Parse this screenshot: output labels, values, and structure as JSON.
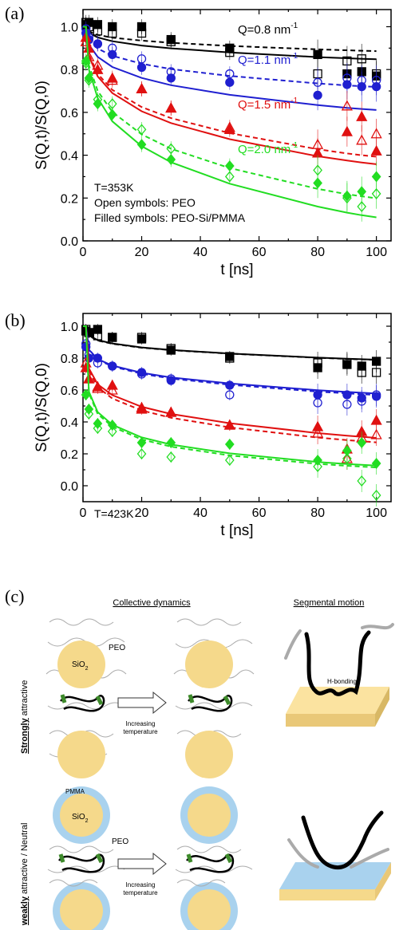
{
  "chart_data": [
    {
      "type": "scatter",
      "panel_label": "(a)",
      "xlabel": "t [ns]",
      "ylabel": "S(Q,t)/S(Q,0)",
      "xlim": [
        0,
        105
      ],
      "ylim": [
        0.0,
        1.08
      ],
      "xticks": [
        0,
        10,
        20,
        30,
        40,
        50,
        60,
        70,
        80,
        90,
        100
      ],
      "xtick_labels": [
        "0",
        "20",
        "40",
        "60",
        "80",
        "100"
      ],
      "ytick_labels": [
        "0.0",
        "0.2",
        "0.4",
        "0.6",
        "0.8",
        "1.0"
      ],
      "yticks": [
        0.0,
        0.1,
        0.2,
        0.3,
        0.4,
        0.5,
        0.6,
        0.7,
        0.8,
        0.9,
        1.0
      ],
      "notes": [
        "T=353K",
        "Open symbols: PEO",
        "Filled symbols: PEO-Si/PMMA"
      ],
      "series": [
        {
          "q_label": "Q=0.8 nm",
          "color": "#000000",
          "marker": "square",
          "x": [
            1,
            2,
            5,
            10,
            20,
            30,
            50,
            80,
            90,
            95,
            100
          ],
          "open": [
            1.02,
            1.0,
            0.98,
            0.97,
            0.97,
            0.93,
            0.88,
            0.78,
            0.84,
            0.85,
            0.78
          ],
          "filled": [
            1.01,
            1.02,
            1.01,
            1.0,
            1.0,
            0.94,
            0.9,
            0.87,
            0.78,
            0.79,
            0.77
          ],
          "fit_open": [
            1.0,
            0.978,
            0.962,
            0.949,
            0.935,
            0.925,
            0.91,
            0.894,
            0.89,
            0.888,
            0.886
          ],
          "fit_filled": [
            1.0,
            0.971,
            0.95,
            0.932,
            0.912,
            0.899,
            0.88,
            0.858,
            0.853,
            0.85,
            0.848
          ]
        },
        {
          "q_label": "Q=1.1 nm",
          "color": "#1f1fd0",
          "marker": "circle",
          "x": [
            1,
            2,
            5,
            10,
            20,
            30,
            50,
            80,
            90,
            95,
            100
          ],
          "open": [
            0.99,
            0.95,
            0.92,
            0.9,
            0.85,
            0.79,
            0.78,
            0.74,
            0.76,
            0.75,
            0.75
          ],
          "filled": [
            0.97,
            0.94,
            0.92,
            0.87,
            0.81,
            0.76,
            0.74,
            0.68,
            0.73,
            0.72,
            0.72
          ],
          "fit_open": [
            1.0,
            0.94,
            0.898,
            0.864,
            0.827,
            0.802,
            0.77,
            0.735,
            0.726,
            0.722,
            0.719
          ],
          "fit_filled": [
            1.0,
            0.916,
            0.859,
            0.812,
            0.761,
            0.727,
            0.682,
            0.634,
            0.621,
            0.616,
            0.611
          ]
        },
        {
          "q_label": "Q=1.5 nm",
          "color": "#e01010",
          "marker": "triangle",
          "x": [
            1,
            2,
            5,
            10,
            20,
            30,
            50,
            80,
            90,
            95,
            100
          ],
          "open": [
            0.93,
            0.86,
            0.82,
            0.75,
            0.71,
            0.62,
            0.53,
            0.45,
            0.63,
            0.47,
            0.5
          ],
          "filled": [
            0.95,
            0.9,
            0.8,
            0.76,
            0.71,
            0.62,
            0.52,
            0.41,
            0.51,
            0.58,
            0.42
          ],
          "fit_open": [
            1.0,
            0.87,
            0.78,
            0.705,
            0.625,
            0.573,
            0.503,
            0.428,
            0.408,
            0.4,
            0.393
          ],
          "fit_filled": [
            1.0,
            0.862,
            0.768,
            0.69,
            0.605,
            0.55,
            0.475,
            0.395,
            0.375,
            0.366,
            0.358
          ]
        },
        {
          "q_label": "Q=2.0 nm",
          "color": "#22dd22",
          "marker": "diamond",
          "x": [
            1,
            2,
            5,
            10,
            20,
            30,
            50,
            80,
            90,
            95,
            100
          ],
          "open": [
            0.83,
            0.75,
            0.66,
            0.64,
            0.52,
            0.43,
            0.3,
            0.33,
            0.2,
            0.16,
            0.22
          ],
          "filled": [
            0.84,
            0.76,
            0.64,
            0.59,
            0.45,
            0.38,
            0.35,
            0.27,
            0.21,
            0.23,
            0.3
          ],
          "fit_open": [
            1.0,
            0.82,
            0.7,
            0.602,
            0.497,
            0.43,
            0.34,
            0.243,
            0.218,
            0.208,
            0.199
          ],
          "fit_filled": [
            1.0,
            0.8,
            0.667,
            0.558,
            0.442,
            0.367,
            0.267,
            0.16,
            0.132,
            0.12,
            0.11
          ]
        }
      ]
    },
    {
      "type": "scatter",
      "panel_label": "(b)",
      "xlabel": "t [ns]",
      "ylabel": "S(Q,t)/S(Q,0)",
      "xlim": [
        0,
        105
      ],
      "ylim": [
        -0.1,
        1.08
      ],
      "xticks": [
        0,
        10,
        20,
        30,
        40,
        50,
        60,
        70,
        80,
        90,
        100
      ],
      "xtick_labels": [
        "0",
        "20",
        "40",
        "60",
        "80",
        "100"
      ],
      "ytick_labels": [
        "0.0",
        "0.2",
        "0.4",
        "0.6",
        "0.8",
        "1.0"
      ],
      "yticks": [
        0.0,
        0.1,
        0.2,
        0.3,
        0.4,
        0.5,
        0.6,
        0.7,
        0.8,
        0.9,
        1.0
      ],
      "notes": [
        "T=423K"
      ],
      "series": [
        {
          "color": "#000000",
          "marker": "square",
          "x": [
            1,
            2,
            5,
            10,
            20,
            30,
            50,
            80,
            90,
            95,
            100
          ],
          "open": [
            0.98,
            0.96,
            0.94,
            0.93,
            0.93,
            0.86,
            0.8,
            0.77,
            0.77,
            0.71,
            0.71
          ],
          "filled": [
            0.97,
            0.96,
            0.98,
            0.93,
            0.92,
            0.85,
            0.81,
            0.74,
            0.76,
            0.75,
            0.78
          ],
          "fit_open": [
            1.0,
            0.94,
            0.91,
            0.89,
            0.865,
            0.85,
            0.828,
            0.802,
            0.795,
            0.792,
            0.789
          ],
          "fit_filled": [
            1.0,
            0.942,
            0.913,
            0.892,
            0.867,
            0.851,
            0.829,
            0.803,
            0.796,
            0.793,
            0.79
          ]
        },
        {
          "color": "#1f1fd0",
          "marker": "circle",
          "x": [
            1,
            2,
            5,
            10,
            20,
            30,
            50,
            80,
            90,
            95,
            100
          ],
          "open": [
            0.89,
            0.82,
            0.77,
            0.75,
            0.7,
            0.67,
            0.57,
            0.52,
            0.51,
            0.53,
            0.57
          ],
          "filled": [
            0.87,
            0.8,
            0.8,
            0.75,
            0.71,
            0.66,
            0.63,
            0.57,
            0.57,
            0.55,
            0.56
          ],
          "fit_open": [
            1.0,
            0.85,
            0.79,
            0.748,
            0.702,
            0.672,
            0.633,
            0.59,
            0.579,
            0.574,
            0.569
          ],
          "fit_filled": [
            1.0,
            0.853,
            0.794,
            0.753,
            0.708,
            0.679,
            0.641,
            0.599,
            0.588,
            0.583,
            0.578
          ]
        },
        {
          "color": "#e01010",
          "marker": "triangle",
          "x": [
            1,
            2,
            5,
            10,
            20,
            30,
            50,
            80,
            90,
            95,
            100
          ],
          "open": [
            0.77,
            0.67,
            0.61,
            0.6,
            0.49,
            0.46,
            0.38,
            0.33,
            0.17,
            0.3,
            0.32
          ],
          "filled": [
            0.74,
            0.67,
            0.62,
            0.63,
            0.48,
            0.46,
            0.38,
            0.37,
            0.23,
            0.34,
            0.41
          ],
          "fit_open": [
            1.0,
            0.72,
            0.617,
            0.547,
            0.472,
            0.426,
            0.366,
            0.302,
            0.286,
            0.279,
            0.272
          ],
          "fit_filled": [
            1.0,
            0.736,
            0.636,
            0.568,
            0.495,
            0.45,
            0.392,
            0.33,
            0.314,
            0.307,
            0.3
          ]
        },
        {
          "color": "#22dd22",
          "marker": "diamond",
          "x": [
            1,
            2,
            5,
            10,
            20,
            30,
            50,
            80,
            90,
            95,
            100
          ],
          "open": [
            0.57,
            0.45,
            0.36,
            0.34,
            0.2,
            0.18,
            0.16,
            0.12,
            0.17,
            0.03,
            -0.06
          ],
          "filled": [
            0.57,
            0.48,
            0.39,
            0.38,
            0.27,
            0.27,
            0.26,
            0.16,
            0.22,
            0.27,
            0.14
          ],
          "fit_open": [
            1.0,
            0.58,
            0.45,
            0.37,
            0.29,
            0.245,
            0.19,
            0.137,
            0.125,
            0.12,
            0.115
          ],
          "fit_filled": [
            1.0,
            0.59,
            0.462,
            0.382,
            0.303,
            0.258,
            0.203,
            0.149,
            0.136,
            0.131,
            0.126
          ]
        }
      ]
    }
  ],
  "superscript": "-1",
  "schematic": {
    "panel_label": "(c)",
    "header_collective": "Collective dynamics",
    "header_segmental": "Segmental motion",
    "row1_label_strong": "Strongly",
    "row1_label_rest": " attractive",
    "row2_label_weak": "weakly",
    "row2_label_rest": " attractive / Neutral",
    "sio2": "SiO",
    "sio2_sub": "2",
    "peo": "PEO",
    "pmma": "PMMA",
    "arrow_text_1": "Increasing",
    "arrow_text_2": "temperature",
    "hbond": "H-bonding",
    "colors": {
      "particle": "#f5d98b",
      "shell": "#a9d2ee",
      "surface_top": "#fbe3a0",
      "surface_side": "#e9c878",
      "surface_blue": "#a9d2ee",
      "chain_mark": "#3d8a2a"
    }
  }
}
